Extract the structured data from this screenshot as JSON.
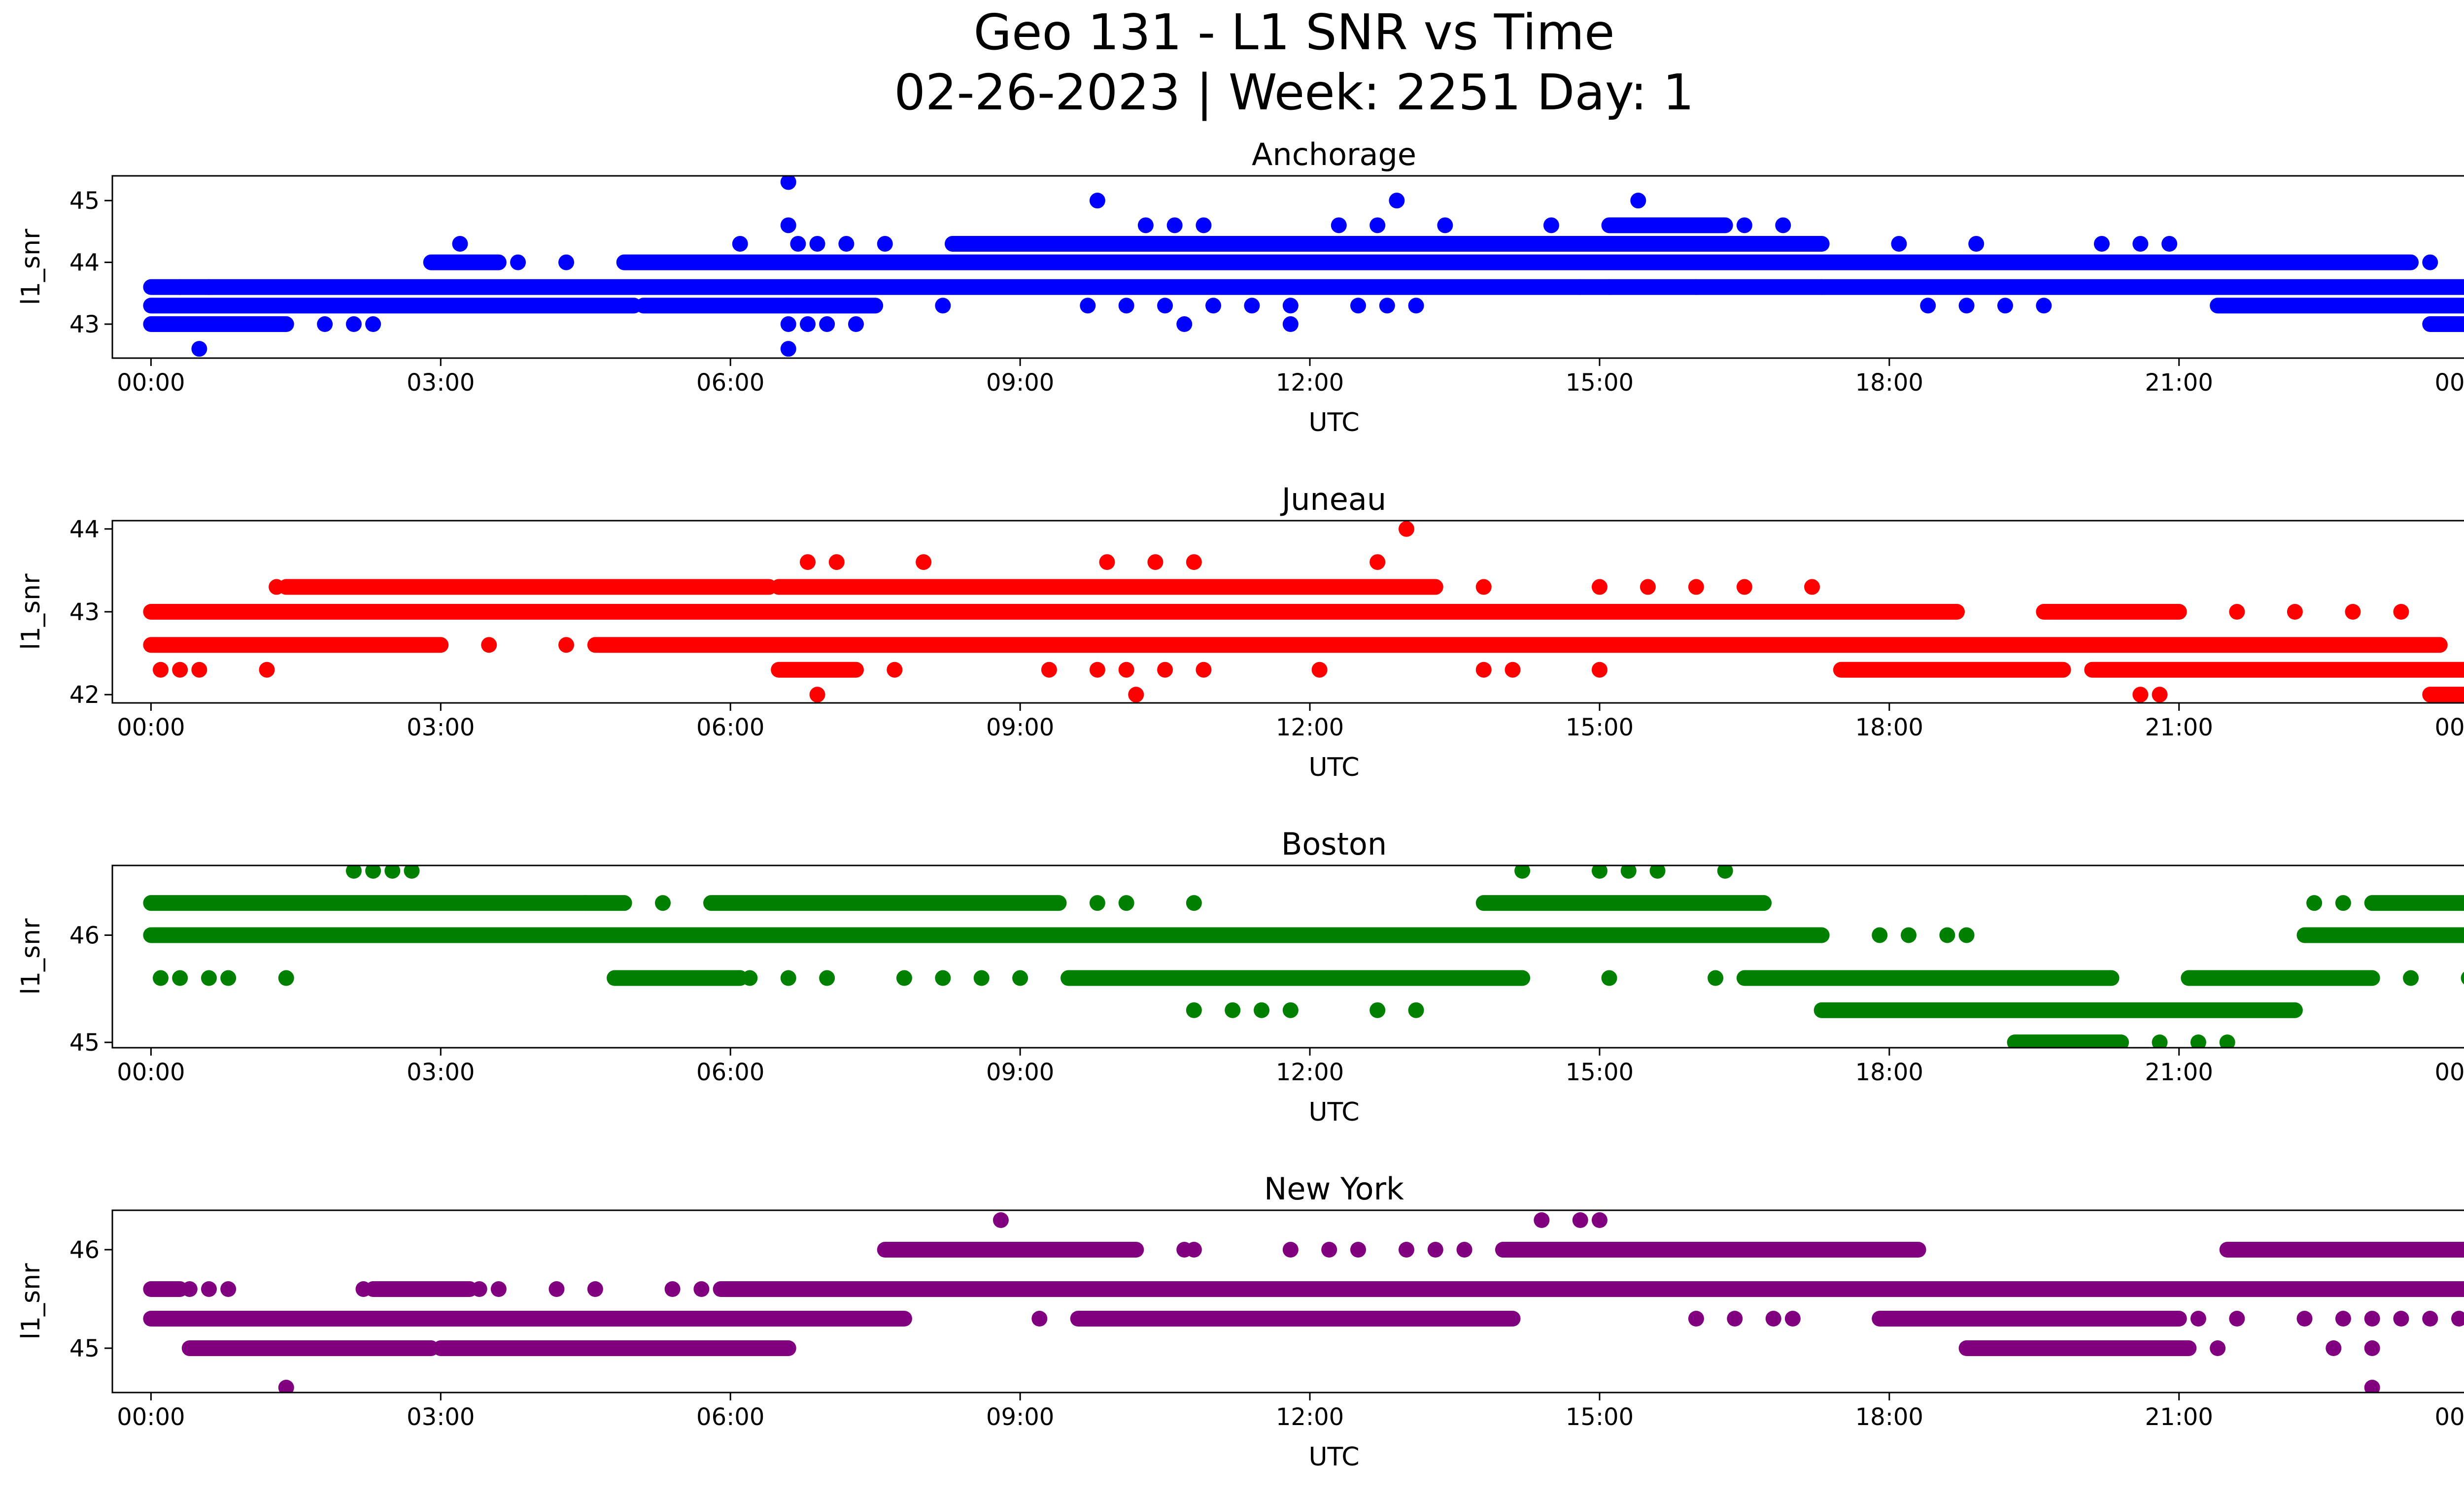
{
  "figure": {
    "title_line1": "Geo 131 - L1 SNR vs Time",
    "title_line2": "02-26-2023 | Week: 2251 Day: 1"
  },
  "chart_data": [
    {
      "type": "scatter",
      "title": "Anchorage",
      "xlabel": "UTC",
      "ylabel": "l1_snr",
      "color": "#0000ff",
      "x_ticks": [
        "00:00",
        "03:00",
        "06:00",
        "09:00",
        "12:00",
        "15:00",
        "18:00",
        "21:00",
        "00:00"
      ],
      "y_ticks": [
        43,
        44,
        45
      ],
      "xlim": [
        -0.4,
        24.9
      ],
      "ylim": [
        42.45,
        45.4
      ],
      "bands": [
        {
          "y": 43.0,
          "from": 0.0,
          "to": 1.4
        },
        {
          "y": 43.3,
          "from": 0.0,
          "to": 5.0
        },
        {
          "y": 43.3,
          "from": 5.1,
          "to": 7.5
        },
        {
          "y": 43.3,
          "from": 21.4,
          "to": 24.0
        },
        {
          "y": 43.6,
          "from": 0.0,
          "to": 24.0
        },
        {
          "y": 44.0,
          "from": 2.9,
          "to": 3.6
        },
        {
          "y": 44.0,
          "from": 4.9,
          "to": 23.4
        },
        {
          "y": 44.3,
          "from": 8.3,
          "to": 17.3
        },
        {
          "y": 44.6,
          "from": 15.1,
          "to": 16.3
        },
        {
          "y": 43.0,
          "from": 23.6,
          "to": 24.0
        }
      ],
      "points": [
        [
          0.5,
          42.6
        ],
        [
          6.6,
          42.6
        ],
        [
          1.8,
          43.0
        ],
        [
          2.1,
          43.0
        ],
        [
          2.3,
          43.0
        ],
        [
          6.6,
          43.0
        ],
        [
          6.8,
          43.0
        ],
        [
          7.0,
          43.0
        ],
        [
          7.3,
          43.0
        ],
        [
          10.7,
          43.0
        ],
        [
          11.8,
          43.0
        ],
        [
          0.3,
          43.6
        ],
        [
          0.6,
          43.6
        ],
        [
          6.6,
          43.3
        ],
        [
          8.2,
          43.3
        ],
        [
          9.7,
          43.3
        ],
        [
          10.1,
          43.3
        ],
        [
          10.5,
          43.3
        ],
        [
          11.0,
          43.3
        ],
        [
          11.4,
          43.3
        ],
        [
          11.8,
          43.3
        ],
        [
          12.5,
          43.3
        ],
        [
          12.8,
          43.3
        ],
        [
          13.1,
          43.3
        ],
        [
          18.4,
          43.3
        ],
        [
          18.8,
          43.3
        ],
        [
          19.2,
          43.3
        ],
        [
          19.6,
          43.3
        ],
        [
          3.2,
          44.3
        ],
        [
          6.1,
          44.3
        ],
        [
          6.7,
          44.3
        ],
        [
          6.9,
          44.3
        ],
        [
          7.2,
          44.3
        ],
        [
          7.6,
          44.3
        ],
        [
          18.1,
          44.3
        ],
        [
          18.9,
          44.3
        ],
        [
          20.2,
          44.3
        ],
        [
          20.6,
          44.3
        ],
        [
          20.9,
          44.3
        ],
        [
          3.8,
          44.0
        ],
        [
          4.3,
          44.0
        ],
        [
          23.6,
          44.0
        ],
        [
          6.6,
          44.6
        ],
        [
          10.3,
          44.6
        ],
        [
          10.6,
          44.6
        ],
        [
          10.9,
          44.6
        ],
        [
          12.3,
          44.6
        ],
        [
          12.7,
          44.6
        ],
        [
          13.4,
          44.6
        ],
        [
          14.5,
          44.6
        ],
        [
          16.5,
          44.6
        ],
        [
          16.9,
          44.6
        ],
        [
          9.8,
          45.0
        ],
        [
          12.9,
          45.0
        ],
        [
          15.4,
          45.0
        ],
        [
          6.6,
          45.3
        ],
        [
          16.0,
          43.6
        ],
        [
          17.3,
          43.6
        ],
        [
          14.8,
          43.6
        ],
        [
          15.1,
          43.6
        ]
      ]
    },
    {
      "type": "scatter",
      "title": "Juneau",
      "xlabel": "UTC",
      "ylabel": "l1_snr",
      "color": "#ff0000",
      "x_ticks": [
        "00:00",
        "03:00",
        "06:00",
        "09:00",
        "12:00",
        "15:00",
        "18:00",
        "21:00",
        "00:00"
      ],
      "y_ticks": [
        42,
        43,
        44
      ],
      "xlim": [
        -0.4,
        24.9
      ],
      "ylim": [
        41.9,
        44.1
      ],
      "bands": [
        {
          "y": 42.6,
          "from": 0.0,
          "to": 3.0
        },
        {
          "y": 42.6,
          "from": 4.6,
          "to": 23.7
        },
        {
          "y": 43.0,
          "from": 0.0,
          "to": 18.7
        },
        {
          "y": 43.0,
          "from": 19.6,
          "to": 21.0
        },
        {
          "y": 43.3,
          "from": 1.4,
          "to": 6.4
        },
        {
          "y": 43.3,
          "from": 6.5,
          "to": 13.3
        },
        {
          "y": 42.3,
          "from": 17.5,
          "to": 19.8
        },
        {
          "y": 42.3,
          "from": 20.1,
          "to": 24.0
        },
        {
          "y": 42.3,
          "from": 6.5,
          "to": 7.3
        },
        {
          "y": 42.0,
          "from": 23.6,
          "to": 24.0
        }
      ],
      "points": [
        [
          0.1,
          42.3
        ],
        [
          0.3,
          42.3
        ],
        [
          0.5,
          42.3
        ],
        [
          1.2,
          42.3
        ],
        [
          9.3,
          42.3
        ],
        [
          9.8,
          42.3
        ],
        [
          10.1,
          42.3
        ],
        [
          10.5,
          42.3
        ],
        [
          10.9,
          42.3
        ],
        [
          12.1,
          42.3
        ],
        [
          13.8,
          42.3
        ],
        [
          14.1,
          42.3
        ],
        [
          15.0,
          42.3
        ],
        [
          7.7,
          42.3
        ],
        [
          6.9,
          42.0
        ],
        [
          10.2,
          42.0
        ],
        [
          20.6,
          42.0
        ],
        [
          20.8,
          42.0
        ],
        [
          3.5,
          42.6
        ],
        [
          4.3,
          42.6
        ],
        [
          1.3,
          43.3
        ],
        [
          13.8,
          43.3
        ],
        [
          15.0,
          43.3
        ],
        [
          15.5,
          43.3
        ],
        [
          16.0,
          43.3
        ],
        [
          16.5,
          43.3
        ],
        [
          17.2,
          43.3
        ],
        [
          6.8,
          43.6
        ],
        [
          7.1,
          43.6
        ],
        [
          8.0,
          43.6
        ],
        [
          9.9,
          43.6
        ],
        [
          10.4,
          43.6
        ],
        [
          10.8,
          43.6
        ],
        [
          12.7,
          43.6
        ],
        [
          21.6,
          43.0
        ],
        [
          22.2,
          43.0
        ],
        [
          22.8,
          43.0
        ],
        [
          23.3,
          43.0
        ],
        [
          13.0,
          44.0
        ]
      ]
    },
    {
      "type": "scatter",
      "title": "Boston",
      "xlabel": "UTC",
      "ylabel": "l1_snr",
      "color": "#008000",
      "x_ticks": [
        "00:00",
        "03:00",
        "06:00",
        "09:00",
        "12:00",
        "15:00",
        "18:00",
        "21:00",
        "00:00"
      ],
      "y_ticks": [
        45,
        46
      ],
      "xlim": [
        -0.4,
        24.9
      ],
      "ylim": [
        44.95,
        46.65
      ],
      "bands": [
        {
          "y": 46.0,
          "from": 0.0,
          "to": 17.3
        },
        {
          "y": 46.0,
          "from": 22.3,
          "to": 24.0
        },
        {
          "y": 46.3,
          "from": 0.0,
          "to": 4.9
        },
        {
          "y": 46.3,
          "from": 5.8,
          "to": 9.4
        },
        {
          "y": 46.3,
          "from": 13.8,
          "to": 16.7
        },
        {
          "y": 46.3,
          "from": 23.0,
          "to": 24.0
        },
        {
          "y": 45.6,
          "from": 4.8,
          "to": 6.1
        },
        {
          "y": 45.6,
          "from": 9.5,
          "to": 14.2
        },
        {
          "y": 45.6,
          "from": 16.5,
          "to": 20.3
        },
        {
          "y": 45.6,
          "from": 21.1,
          "to": 23.0
        },
        {
          "y": 45.3,
          "from": 17.3,
          "to": 22.2
        },
        {
          "y": 45.0,
          "from": 19.3,
          "to": 20.4
        }
      ],
      "points": [
        [
          0.1,
          45.6
        ],
        [
          0.3,
          45.6
        ],
        [
          0.6,
          45.6
        ],
        [
          0.8,
          45.6
        ],
        [
          1.4,
          45.6
        ],
        [
          6.2,
          45.6
        ],
        [
          6.6,
          45.6
        ],
        [
          7.0,
          45.6
        ],
        [
          7.8,
          45.6
        ],
        [
          8.2,
          45.6
        ],
        [
          8.6,
          45.6
        ],
        [
          9.0,
          45.6
        ],
        [
          15.1,
          45.6
        ],
        [
          16.2,
          45.6
        ],
        [
          23.4,
          45.6
        ],
        [
          24.0,
          45.6
        ],
        [
          10.8,
          45.3
        ],
        [
          11.2,
          45.3
        ],
        [
          11.5,
          45.3
        ],
        [
          11.8,
          45.3
        ],
        [
          12.7,
          45.3
        ],
        [
          13.1,
          45.3
        ],
        [
          20.8,
          45.0
        ],
        [
          21.2,
          45.0
        ],
        [
          21.5,
          45.0
        ],
        [
          4.5,
          46.3
        ],
        [
          5.3,
          46.3
        ],
        [
          9.8,
          46.3
        ],
        [
          10.1,
          46.3
        ],
        [
          10.8,
          46.3
        ],
        [
          22.4,
          46.3
        ],
        [
          22.7,
          46.3
        ],
        [
          17.9,
          46.0
        ],
        [
          18.2,
          46.0
        ],
        [
          18.6,
          46.0
        ],
        [
          18.8,
          46.0
        ],
        [
          2.1,
          46.6
        ],
        [
          2.3,
          46.6
        ],
        [
          2.5,
          46.6
        ],
        [
          2.7,
          46.6
        ],
        [
          14.2,
          46.6
        ],
        [
          15.0,
          46.6
        ],
        [
          15.3,
          46.6
        ],
        [
          15.6,
          46.6
        ],
        [
          16.3,
          46.6
        ]
      ]
    },
    {
      "type": "scatter",
      "title": "New York",
      "xlabel": "UTC",
      "ylabel": "l1_snr",
      "color": "#800080",
      "x_ticks": [
        "00:00",
        "03:00",
        "06:00",
        "09:00",
        "12:00",
        "15:00",
        "18:00",
        "21:00",
        "00:00"
      ],
      "y_ticks": [
        45,
        46
      ],
      "xlim": [
        -0.4,
        24.9
      ],
      "ylim": [
        44.55,
        46.4
      ],
      "bands": [
        {
          "y": 45.3,
          "from": 0.0,
          "to": 7.8
        },
        {
          "y": 45.3,
          "from": 9.6,
          "to": 14.1
        },
        {
          "y": 45.3,
          "from": 17.9,
          "to": 21.0
        },
        {
          "y": 45.6,
          "from": 5.9,
          "to": 24.0
        },
        {
          "y": 45.6,
          "from": 0.0,
          "to": 0.3
        },
        {
          "y": 45.6,
          "from": 2.3,
          "to": 3.3
        },
        {
          "y": 46.0,
          "from": 7.6,
          "to": 10.2
        },
        {
          "y": 46.0,
          "from": 14.0,
          "to": 18.3
        },
        {
          "y": 46.0,
          "from": 21.5,
          "to": 24.0
        },
        {
          "y": 45.0,
          "from": 0.4,
          "to": 2.9
        },
        {
          "y": 45.0,
          "from": 3.0,
          "to": 6.6
        },
        {
          "y": 45.0,
          "from": 18.8,
          "to": 21.1
        }
      ],
      "points": [
        [
          0.4,
          45.6
        ],
        [
          0.6,
          45.6
        ],
        [
          0.8,
          45.6
        ],
        [
          2.2,
          45.6
        ],
        [
          3.4,
          45.6
        ],
        [
          3.6,
          45.6
        ],
        [
          4.2,
          45.6
        ],
        [
          4.6,
          45.6
        ],
        [
          5.4,
          45.6
        ],
        [
          5.7,
          45.6
        ],
        [
          9.2,
          45.3
        ],
        [
          16.0,
          45.3
        ],
        [
          16.4,
          45.3
        ],
        [
          16.8,
          45.3
        ],
        [
          17.0,
          45.3
        ],
        [
          21.2,
          45.3
        ],
        [
          21.6,
          45.3
        ],
        [
          22.3,
          45.3
        ],
        [
          22.7,
          45.3
        ],
        [
          23.0,
          45.3
        ],
        [
          23.3,
          45.3
        ],
        [
          23.6,
          45.3
        ],
        [
          23.9,
          45.3
        ],
        [
          24.0,
          45.3
        ],
        [
          1.4,
          44.6
        ],
        [
          23.0,
          44.6
        ],
        [
          23.0,
          45.0
        ],
        [
          22.6,
          45.0
        ],
        [
          21.4,
          45.0
        ],
        [
          10.7,
          46.0
        ],
        [
          10.8,
          46.0
        ],
        [
          11.8,
          46.0
        ],
        [
          12.2,
          46.0
        ],
        [
          12.5,
          46.0
        ],
        [
          13.0,
          46.0
        ],
        [
          13.3,
          46.0
        ],
        [
          13.6,
          46.0
        ],
        [
          8.8,
          46.3
        ],
        [
          14.4,
          46.3
        ],
        [
          14.8,
          46.3
        ],
        [
          15.0,
          46.3
        ]
      ]
    }
  ]
}
